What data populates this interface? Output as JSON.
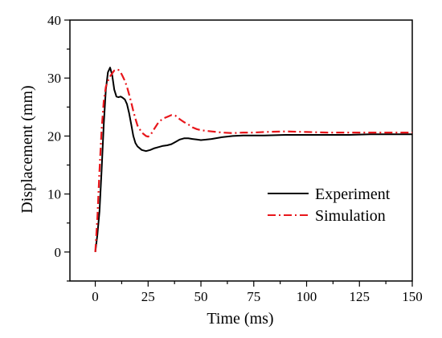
{
  "chart_data": {
    "type": "line",
    "title": "",
    "xlabel": "Time (ms)",
    "ylabel": "Displacement (mm)",
    "xlim": [
      -12,
      150
    ],
    "ylim": [
      -5,
      40
    ],
    "xticks": [
      0,
      25,
      50,
      75,
      100,
      125,
      150
    ],
    "yticks": [
      0,
      10,
      20,
      30,
      40
    ],
    "grid": false,
    "legend": "right",
    "series": [
      {
        "name": "Experiment",
        "color": "#000000",
        "dash": "solid",
        "x": [
          0,
          1,
          2,
          3,
          4,
          5,
          6,
          7,
          8,
          9,
          10,
          11,
          12,
          13,
          14,
          15,
          16,
          17,
          18,
          19,
          20,
          22,
          24,
          26,
          28,
          30,
          32,
          34,
          36,
          38,
          40,
          42,
          44,
          46,
          48,
          50,
          55,
          60,
          65,
          70,
          75,
          80,
          90,
          100,
          110,
          120,
          130,
          140,
          150
        ],
        "y": [
          0,
          3,
          7,
          14,
          22,
          28,
          31,
          31.8,
          30.5,
          28,
          26.8,
          26.7,
          26.8,
          26.6,
          26.3,
          25.5,
          24,
          22,
          20,
          18.8,
          18.2,
          17.6,
          17.4,
          17.6,
          17.9,
          18.1,
          18.3,
          18.4,
          18.6,
          19,
          19.4,
          19.6,
          19.6,
          19.5,
          19.4,
          19.3,
          19.5,
          19.8,
          20,
          20.1,
          20.1,
          20.1,
          20.2,
          20.2,
          20.2,
          20.2,
          20.3,
          20.3,
          20.3
        ]
      },
      {
        "name": "Simulation",
        "color": "#e8161b",
        "dash": "dashdot",
        "x": [
          0,
          1,
          2,
          3,
          4,
          5,
          6,
          7,
          8,
          9,
          10,
          11,
          12,
          13,
          14,
          15,
          16,
          17,
          18,
          19,
          20,
          22,
          24,
          25,
          26,
          28,
          30,
          32,
          34,
          36,
          37,
          38,
          40,
          42,
          44,
          46,
          48,
          50,
          55,
          60,
          65,
          70,
          75,
          80,
          90,
          100,
          110,
          120,
          130,
          140,
          150
        ],
        "y": [
          0,
          6,
          14,
          21,
          26,
          28.5,
          29.5,
          30.3,
          30.8,
          31.3,
          31.5,
          31.4,
          31,
          30.3,
          29.5,
          28.5,
          27.2,
          25.8,
          24.3,
          23,
          21.8,
          20.6,
          20,
          19.9,
          20.1,
          21.3,
          22.4,
          23,
          23.3,
          23.6,
          23.6,
          23.5,
          22.9,
          22.4,
          22,
          21.5,
          21.2,
          21,
          20.8,
          20.6,
          20.5,
          20.6,
          20.6,
          20.7,
          20.8,
          20.7,
          20.6,
          20.6,
          20.6,
          20.6,
          20.6
        ]
      }
    ]
  }
}
